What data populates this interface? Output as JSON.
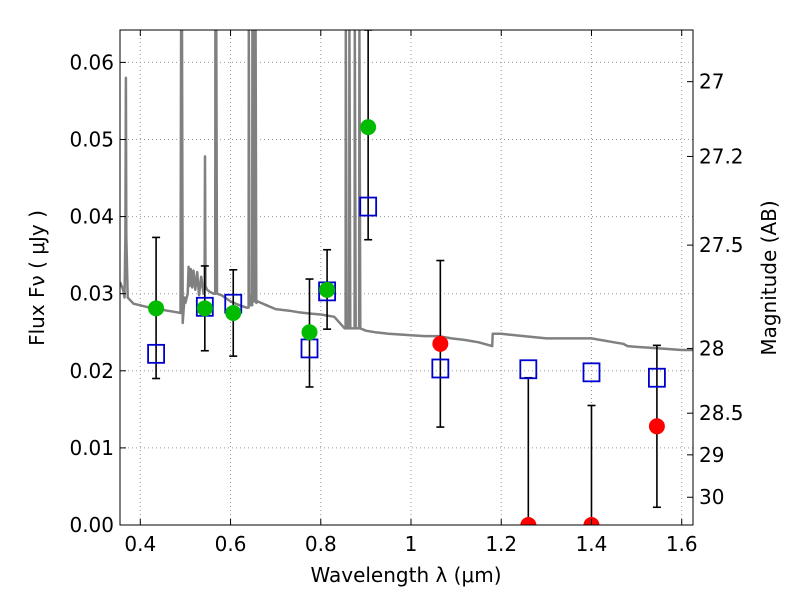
{
  "chart_data": {
    "type": "scatter",
    "xlabel": "Wavelength  λ (μm)",
    "ylabel": "Flux  Fν  ( μJy )",
    "y2label": "Magnitude (AB)",
    "xlim": [
      0.355,
      1.625
    ],
    "ylim": [
      0.0,
      0.0642
    ],
    "grid": true,
    "x_ticks": [
      0.4,
      0.6,
      0.8,
      1.0,
      1.2,
      1.4,
      1.6
    ],
    "x_tick_labels": [
      "0.4",
      "0.6",
      "0.8",
      "1",
      "1.2",
      "1.4",
      "1.6"
    ],
    "y_ticks": [
      0.0,
      0.01,
      0.02,
      0.03,
      0.04,
      0.05,
      0.06
    ],
    "y_tick_labels": [
      "0.00",
      "0.01",
      "0.02",
      "0.03",
      "0.04",
      "0.05",
      "0.06"
    ],
    "y2_ticks": [
      {
        "label": "27",
        "flux": 0.0575
      },
      {
        "label": "27.2",
        "flux": 0.0478
      },
      {
        "label": "27.5",
        "flux": 0.0363
      },
      {
        "label": "28",
        "flux": 0.0229
      },
      {
        "label": "28.5",
        "flux": 0.0145
      },
      {
        "label": "29",
        "flux": 0.0091
      },
      {
        "label": "30",
        "flux": 0.0036
      }
    ],
    "colors": {
      "model": "#808080",
      "detection": "#00bb00",
      "non_detection": "#ff0000",
      "model_photometry": "#0000cc",
      "errorbar": "#000000",
      "grid": "#999999"
    },
    "series": [
      {
        "name": "model spectrum",
        "kind": "line",
        "points": [
          [
            0.355,
            0.0315
          ],
          [
            0.362,
            0.0305
          ],
          [
            0.365,
            0.0295
          ],
          [
            0.367,
            0.0375
          ],
          [
            0.368,
            0.058
          ],
          [
            0.369,
            0.0375
          ],
          [
            0.372,
            0.0295
          ],
          [
            0.385,
            0.0287
          ],
          [
            0.4,
            0.0285
          ],
          [
            0.42,
            0.0282
          ],
          [
            0.44,
            0.028
          ],
          [
            0.46,
            0.0278
          ],
          [
            0.48,
            0.0276
          ],
          [
            0.489,
            0.0275
          ],
          [
            0.4905,
            0.0642
          ],
          [
            0.4925,
            0.0642
          ],
          [
            0.494,
            0.0262
          ],
          [
            0.498,
            0.0295
          ],
          [
            0.5,
            0.0288
          ],
          [
            0.505,
            0.03
          ],
          [
            0.507,
            0.0335
          ],
          [
            0.509,
            0.031
          ],
          [
            0.512,
            0.0332
          ],
          [
            0.515,
            0.0308
          ],
          [
            0.518,
            0.033
          ],
          [
            0.522,
            0.0305
          ],
          [
            0.526,
            0.0328
          ],
          [
            0.53,
            0.0298
          ],
          [
            0.535,
            0.0322
          ],
          [
            0.54,
            0.03
          ],
          [
            0.5425,
            0.031
          ],
          [
            0.5435,
            0.0478
          ],
          [
            0.5445,
            0.031
          ],
          [
            0.548,
            0.0305
          ],
          [
            0.555,
            0.0302
          ],
          [
            0.563,
            0.03
          ],
          [
            0.566,
            0.03
          ],
          [
            0.5665,
            0.0642
          ],
          [
            0.5685,
            0.0642
          ],
          [
            0.57,
            0.03
          ],
          [
            0.58,
            0.0298
          ],
          [
            0.6,
            0.029
          ],
          [
            0.62,
            0.0285
          ],
          [
            0.635,
            0.0282
          ],
          [
            0.64,
            0.0282
          ],
          [
            0.6405,
            0.0642
          ],
          [
            0.642,
            0.03
          ],
          [
            0.645,
            0.0285
          ],
          [
            0.648,
            0.0285
          ],
          [
            0.6485,
            0.0642
          ],
          [
            0.65,
            0.03
          ],
          [
            0.6525,
            0.029
          ],
          [
            0.653,
            0.029
          ],
          [
            0.6535,
            0.0642
          ],
          [
            0.6555,
            0.0642
          ],
          [
            0.657,
            0.0288
          ],
          [
            0.66,
            0.029
          ],
          [
            0.68,
            0.0285
          ],
          [
            0.7,
            0.028
          ],
          [
            0.73,
            0.0278
          ],
          [
            0.75,
            0.0276
          ],
          [
            0.78,
            0.0274
          ],
          [
            0.8,
            0.0273
          ],
          [
            0.83,
            0.027
          ],
          [
            0.853,
            0.0255
          ],
          [
            0.855,
            0.0255
          ],
          [
            0.8555,
            0.0642
          ],
          [
            0.8575,
            0.0255
          ],
          [
            0.863,
            0.0255
          ],
          [
            0.8635,
            0.0642
          ],
          [
            0.8655,
            0.0255
          ],
          [
            0.875,
            0.0255
          ],
          [
            0.8755,
            0.0642
          ],
          [
            0.8775,
            0.0255
          ],
          [
            0.885,
            0.0255
          ],
          [
            0.8855,
            0.0642
          ],
          [
            0.8875,
            0.0255
          ],
          [
            0.9,
            0.0252
          ],
          [
            0.92,
            0.025
          ],
          [
            0.95,
            0.0248
          ],
          [
            0.98,
            0.0247
          ],
          [
            1.0,
            0.0246
          ],
          [
            1.03,
            0.0245
          ],
          [
            1.06,
            0.0245
          ],
          [
            1.09,
            0.0242
          ],
          [
            1.12,
            0.024
          ],
          [
            1.15,
            0.0237
          ],
          [
            1.18,
            0.0232
          ],
          [
            1.181,
            0.0248
          ],
          [
            1.2,
            0.0248
          ],
          [
            1.25,
            0.0245
          ],
          [
            1.3,
            0.0242
          ],
          [
            1.35,
            0.0242
          ],
          [
            1.4,
            0.0242
          ],
          [
            1.45,
            0.0237
          ],
          [
            1.47,
            0.0235
          ],
          [
            1.48,
            0.0232
          ],
          [
            1.5,
            0.0231
          ],
          [
            1.55,
            0.0229
          ],
          [
            1.6,
            0.0227
          ],
          [
            1.625,
            0.0227
          ]
        ]
      },
      {
        "name": "measured flux (detections)",
        "kind": "points",
        "points": [
          {
            "x": 0.435,
            "y": 0.0281,
            "err_low": 0.019,
            "err_high": 0.0373
          },
          {
            "x": 0.543,
            "y": 0.0281,
            "err_low": 0.0226,
            "err_high": 0.0336
          },
          {
            "x": 0.606,
            "y": 0.0275,
            "err_low": 0.0219,
            "err_high": 0.0331
          },
          {
            "x": 0.775,
            "y": 0.025,
            "err_low": 0.0179,
            "err_high": 0.0319
          },
          {
            "x": 0.814,
            "y": 0.0305,
            "err_low": 0.0254,
            "err_high": 0.0357
          },
          {
            "x": 0.905,
            "y": 0.0516,
            "err_low": 0.037,
            "err_high": 0.0642
          }
        ]
      },
      {
        "name": "measured flux (low S/N)",
        "kind": "points",
        "points": [
          {
            "x": 1.065,
            "y": 0.0235,
            "err_low": 0.0127,
            "err_high": 0.0343
          },
          {
            "x": 1.26,
            "y": 0.0,
            "err_low": 0.0,
            "err_high": 0.0191
          },
          {
            "x": 1.4,
            "y": 0.0,
            "err_low": 0.0,
            "err_high": 0.0155
          },
          {
            "x": 1.545,
            "y": 0.0128,
            "err_low": 0.0023,
            "err_high": 0.0233
          }
        ]
      },
      {
        "name": "model photometry",
        "kind": "squares",
        "points": [
          {
            "x": 0.435,
            "y": 0.0222
          },
          {
            "x": 0.543,
            "y": 0.0283
          },
          {
            "x": 0.606,
            "y": 0.0287
          },
          {
            "x": 0.775,
            "y": 0.0229
          },
          {
            "x": 0.814,
            "y": 0.0303
          },
          {
            "x": 0.905,
            "y": 0.0413
          },
          {
            "x": 1.065,
            "y": 0.0203
          },
          {
            "x": 1.26,
            "y": 0.0202
          },
          {
            "x": 1.4,
            "y": 0.0198
          },
          {
            "x": 1.545,
            "y": 0.0191
          }
        ]
      }
    ]
  }
}
